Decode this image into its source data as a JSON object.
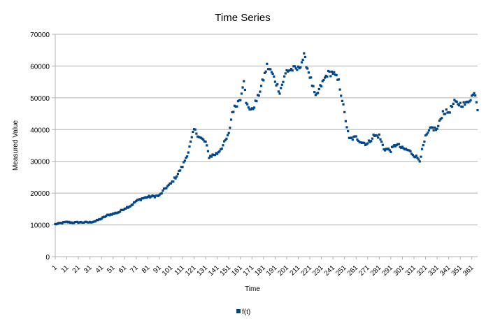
{
  "chart_data": {
    "type": "scatter",
    "title": "Time Series",
    "xlabel": "Time",
    "ylabel": "Measured Value",
    "xlim": [
      1,
      366
    ],
    "ylim": [
      0,
      70000
    ],
    "y_ticks": [
      0,
      10000,
      20000,
      30000,
      40000,
      50000,
      60000,
      70000
    ],
    "x_ticks": [
      1,
      11,
      21,
      31,
      41,
      51,
      61,
      71,
      81,
      91,
      101,
      111,
      121,
      131,
      141,
      151,
      161,
      171,
      181,
      191,
      201,
      211,
      221,
      231,
      241,
      251,
      261,
      271,
      281,
      291,
      301,
      311,
      321,
      331,
      341,
      351,
      361
    ],
    "grid": "horizontal",
    "legend_position": "bottom",
    "colors": {
      "series": "#004586",
      "grid": "#b3b3b3",
      "axis": "#b3b3b3"
    },
    "series": [
      {
        "name": "f(t)",
        "marker": "square",
        "trend": [
          [
            1,
            10200
          ],
          [
            5,
            10500
          ],
          [
            11,
            10900
          ],
          [
            16,
            10700
          ],
          [
            21,
            10800
          ],
          [
            31,
            10800
          ],
          [
            36,
            11200
          ],
          [
            41,
            12000
          ],
          [
            46,
            13000
          ],
          [
            51,
            13500
          ],
          [
            56,
            14000
          ],
          [
            61,
            15200
          ],
          [
            66,
            16000
          ],
          [
            71,
            17500
          ],
          [
            76,
            18300
          ],
          [
            81,
            18800
          ],
          [
            86,
            19000
          ],
          [
            91,
            19200
          ],
          [
            96,
            21500
          ],
          [
            101,
            23000
          ],
          [
            106,
            25500
          ],
          [
            111,
            28500
          ],
          [
            116,
            33000
          ],
          [
            121,
            40000
          ],
          [
            126,
            37500
          ],
          [
            131,
            36000
          ],
          [
            134,
            31500
          ],
          [
            141,
            32500
          ],
          [
            146,
            35000
          ],
          [
            151,
            38500
          ],
          [
            154,
            45500
          ],
          [
            157,
            47500
          ],
          [
            161,
            50000
          ],
          [
            164,
            56000
          ],
          [
            166,
            48000
          ],
          [
            171,
            46000
          ],
          [
            176,
            50000
          ],
          [
            181,
            56000
          ],
          [
            184,
            60000
          ],
          [
            188,
            58000
          ],
          [
            191,
            55500
          ],
          [
            195,
            52000
          ],
          [
            201,
            58500
          ],
          [
            206,
            59000
          ],
          [
            211,
            59000
          ],
          [
            216,
            63000
          ],
          [
            221,
            57000
          ],
          [
            226,
            50000
          ],
          [
            231,
            54000
          ],
          [
            236,
            57500
          ],
          [
            241,
            58000
          ],
          [
            246,
            55000
          ],
          [
            249,
            49500
          ],
          [
            251,
            45000
          ],
          [
            255,
            37000
          ],
          [
            261,
            37500
          ],
          [
            266,
            36000
          ],
          [
            271,
            35500
          ],
          [
            276,
            38000
          ],
          [
            281,
            38000
          ],
          [
            285,
            34000
          ],
          [
            291,
            33500
          ],
          [
            296,
            35500
          ],
          [
            301,
            34000
          ],
          [
            306,
            33500
          ],
          [
            311,
            32000
          ],
          [
            316,
            30500
          ],
          [
            321,
            37500
          ],
          [
            326,
            40500
          ],
          [
            331,
            40000
          ],
          [
            336,
            45500
          ],
          [
            341,
            45500
          ],
          [
            346,
            48500
          ],
          [
            351,
            48000
          ],
          [
            356,
            48000
          ],
          [
            361,
            50500
          ],
          [
            364,
            51500
          ],
          [
            366,
            46500
          ]
        ]
      }
    ]
  }
}
